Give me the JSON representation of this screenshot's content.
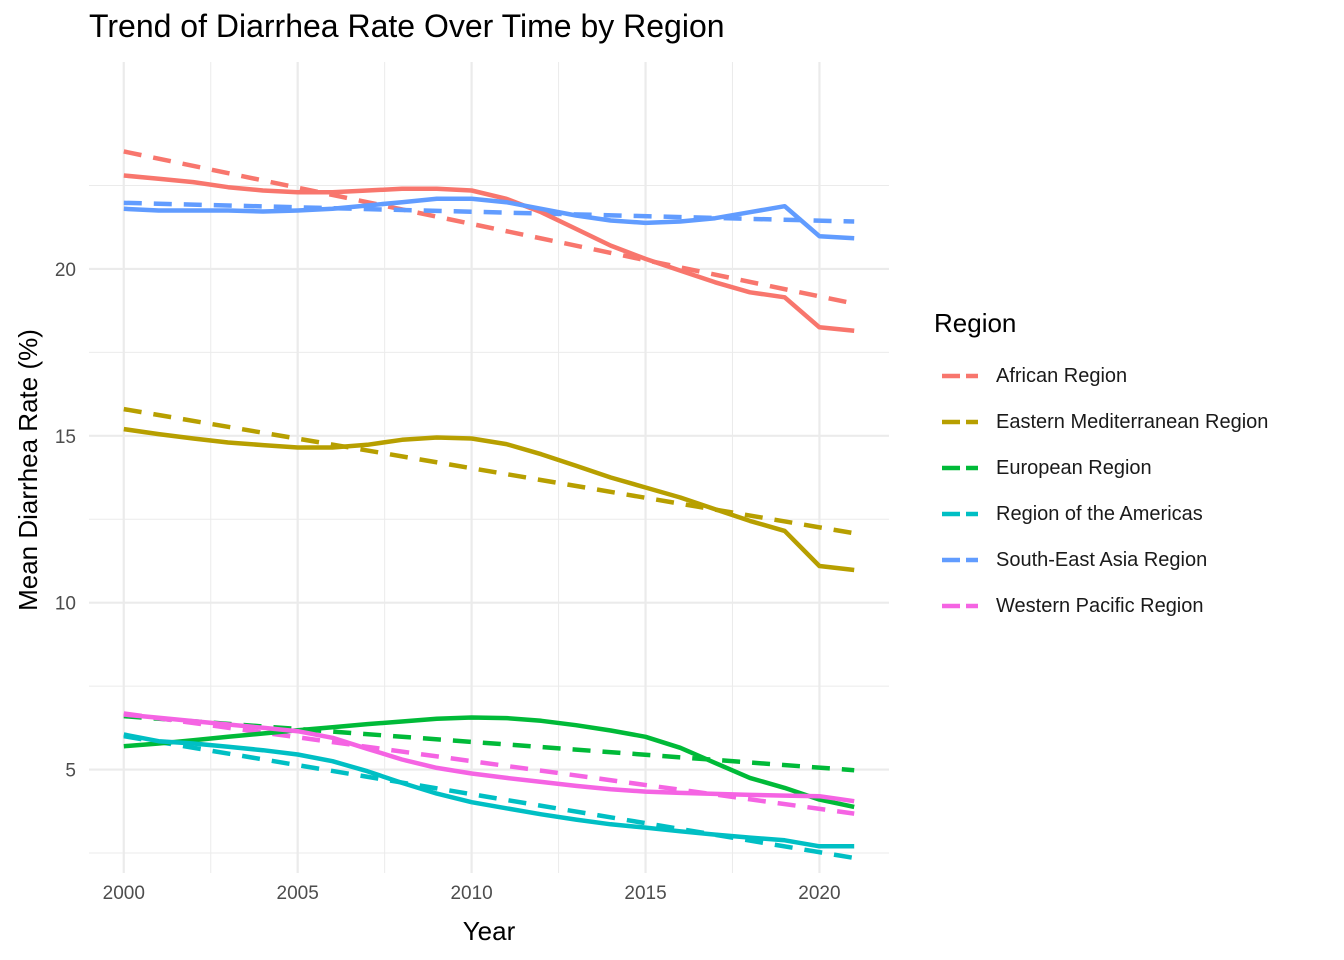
{
  "chart_data": {
    "type": "line",
    "title": "Trend of Diarrhea Rate Over Time by Region",
    "xlabel": "Year",
    "ylabel": "Mean Diarrhea Rate (%)",
    "xlim": [
      1999,
      2022
    ],
    "ylim": [
      1.9,
      26.2
    ],
    "x_ticks": [
      2000,
      2005,
      2010,
      2015,
      2020
    ],
    "y_ticks": [
      5,
      10,
      15,
      20
    ],
    "grid": true,
    "legend": {
      "title": "Region",
      "position": "right"
    },
    "x": [
      2000,
      2001,
      2002,
      2003,
      2004,
      2005,
      2006,
      2007,
      2008,
      2009,
      2010,
      2011,
      2012,
      2013,
      2014,
      2015,
      2016,
      2017,
      2018,
      2019,
      2020,
      2021
    ],
    "series": [
      {
        "name": "African Region",
        "color": "#F8766D",
        "values": [
          22.8,
          22.7,
          22.6,
          22.45,
          22.35,
          22.3,
          22.3,
          22.35,
          22.4,
          22.4,
          22.35,
          22.1,
          21.7,
          21.2,
          20.7,
          20.3,
          19.95,
          19.6,
          19.3,
          19.15,
          18.25,
          18.15
        ],
        "trend": [
          23.52,
          18.96
        ]
      },
      {
        "name": "Eastern Mediterranean Region",
        "color": "#B79F00",
        "values": [
          15.2,
          15.05,
          14.92,
          14.8,
          14.72,
          14.65,
          14.65,
          14.73,
          14.88,
          14.95,
          14.92,
          14.75,
          14.45,
          14.1,
          13.75,
          13.45,
          13.15,
          12.8,
          12.45,
          12.15,
          11.1,
          10.98
        ],
        "trend": [
          15.8,
          12.08
        ]
      },
      {
        "name": "European Region",
        "color": "#00BA38",
        "values": [
          5.7,
          5.78,
          5.88,
          5.98,
          6.08,
          6.18,
          6.27,
          6.36,
          6.44,
          6.52,
          6.56,
          6.54,
          6.46,
          6.33,
          6.17,
          5.98,
          5.65,
          5.2,
          4.75,
          4.45,
          4.1,
          3.88
        ],
        "trend": [
          6.6,
          4.98
        ]
      },
      {
        "name": "Region of the Americas",
        "color": "#00BFC4",
        "values": [
          6.05,
          5.85,
          5.78,
          5.68,
          5.58,
          5.45,
          5.25,
          4.95,
          4.6,
          4.28,
          4.02,
          3.84,
          3.66,
          3.5,
          3.36,
          3.26,
          3.15,
          3.05,
          2.96,
          2.88,
          2.7,
          2.7
        ],
        "trend": [
          6.0,
          2.35
        ]
      },
      {
        "name": "South-East Asia Region",
        "color": "#619CFF",
        "values": [
          21.8,
          21.75,
          21.75,
          21.75,
          21.72,
          21.75,
          21.8,
          21.9,
          22.0,
          22.1,
          22.1,
          22.0,
          21.8,
          21.6,
          21.45,
          21.38,
          21.42,
          21.52,
          21.7,
          21.88,
          20.98,
          20.92
        ],
        "trend": [
          21.98,
          21.42
        ]
      },
      {
        "name": "Western Pacific Region",
        "color": "#F564E3",
        "values": [
          6.65,
          6.55,
          6.45,
          6.35,
          6.25,
          6.15,
          5.95,
          5.62,
          5.3,
          5.05,
          4.88,
          4.75,
          4.63,
          4.51,
          4.41,
          4.34,
          4.3,
          4.27,
          4.24,
          4.22,
          4.2,
          4.05
        ],
        "trend": [
          6.68,
          3.68
        ]
      }
    ]
  }
}
